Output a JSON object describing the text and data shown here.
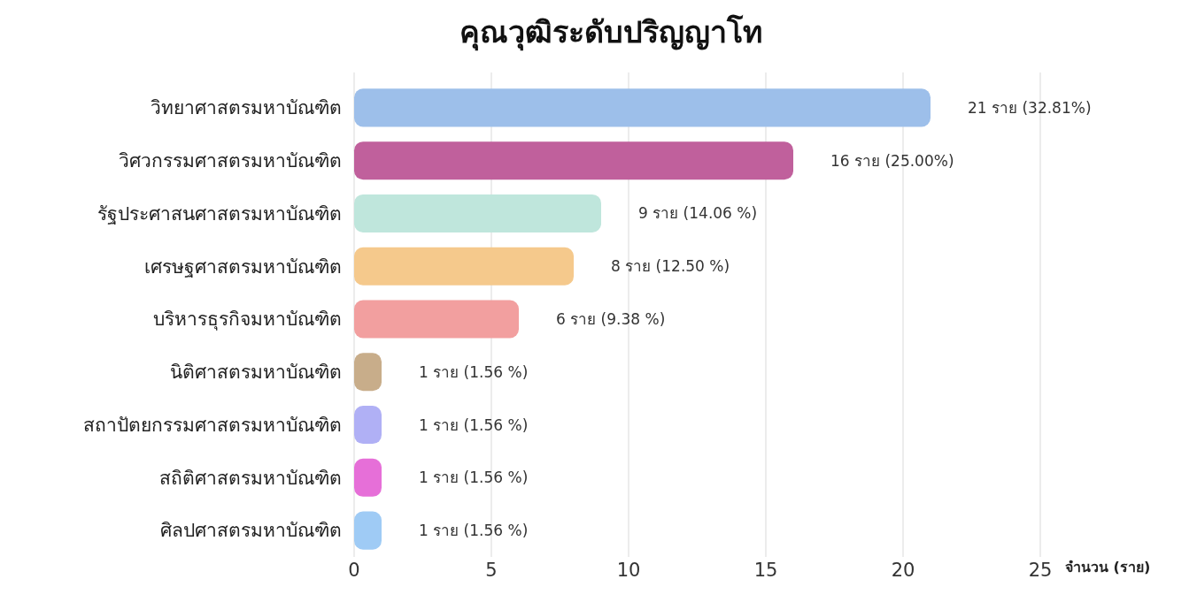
{
  "chart_data": {
    "type": "bar",
    "orientation": "horizontal",
    "title": "คุณวุฒิระดับปริญญาโท",
    "xlabel": "จำนวน (ราย)",
    "categories": [
      "วิทยาศาสตรมหาบัณฑิต",
      "วิศวกรรมศาสตรมหาบัณฑิต",
      "รัฐประศาสนศาสตรมหาบัณฑิต",
      "เศรษฐศาสตรมหาบัณฑิต",
      "บริหารธุรกิจมหาบัณฑิต",
      "นิติศาสตรมหาบัณฑิต",
      "สถาปัตยกรรมศาสตรมหาบัณฑิต",
      "สถิติศาสตรมหาบัณฑิต",
      "ศิลปศาสตรมหาบัณฑิต"
    ],
    "values": [
      21,
      16,
      9,
      8,
      6,
      1,
      1,
      1,
      1
    ],
    "colors": [
      "#9dbfea",
      "#c0609c",
      "#bfe6dc",
      "#f5c98c",
      "#f29f9f",
      "#c8ad8a",
      "#b0b0f5",
      "#e66fd8",
      "#9fcbf5"
    ],
    "value_labels": [
      "21 ราย (32.81%)",
      "16 ราย (25.00%)",
      "9 ราย (14.06 %)",
      "8 ราย (12.50 %)",
      "6 ราย (9.38 %)",
      "1 ราย (1.56 %)",
      "1 ราย (1.56 %)",
      "1 ราย (1.56 %)",
      "1 ราย (1.56 %)"
    ],
    "xlim": [
      0,
      25
    ],
    "xticks": [
      0,
      5,
      10,
      15,
      20,
      25
    ],
    "grid": "x"
  }
}
